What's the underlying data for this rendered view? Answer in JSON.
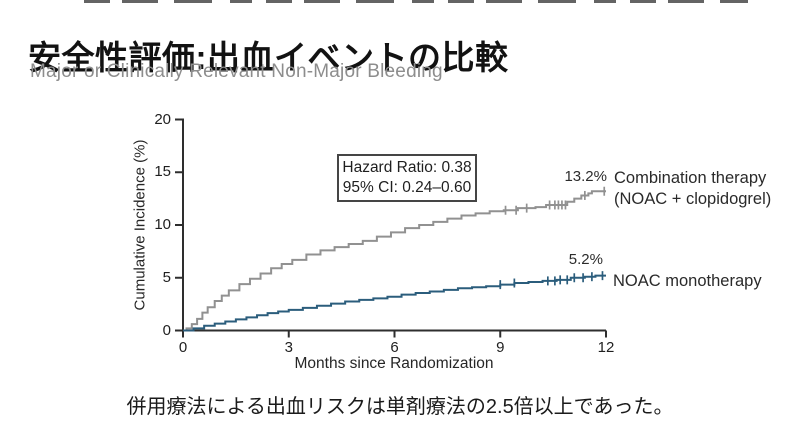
{
  "page": {
    "title": "安全性評価:出血イベントの比較",
    "subtitle": "Major or Clinically Relevant Non-Major Bleeding",
    "conclusion": "併用療法による出血リスクは単剤療法の2.5倍以上であった。"
  },
  "chart_data": {
    "type": "line",
    "subtype": "kaplan-meier-step",
    "title": "",
    "xlabel": "Months since Randomization",
    "ylabel": "Cumulative Incidence (%)",
    "xlim": [
      0,
      12
    ],
    "ylim": [
      0,
      20
    ],
    "xticks": [
      0,
      3,
      6,
      9,
      12
    ],
    "yticks": [
      0,
      5,
      10,
      15,
      20
    ],
    "grid": false,
    "legend_position": "right-of-curves",
    "axis_color": "#2e2e2e",
    "annotation": {
      "line1": "Hazard Ratio: 0.38",
      "line2": "95% CI: 0.24–0.60"
    },
    "series": [
      {
        "name": "Combination therapy (NOAC + clopidogrel)",
        "label_lines": [
          "Combination therapy",
          "(NOAC + clopidogrel)"
        ],
        "end_label": "13.2%",
        "end_value": 13.2,
        "color": "#919191",
        "points": [
          [
            0,
            0
          ],
          [
            0.1,
            0.2
          ],
          [
            0.25,
            0.6
          ],
          [
            0.4,
            1.1
          ],
          [
            0.55,
            1.7
          ],
          [
            0.7,
            2.2
          ],
          [
            0.9,
            2.8
          ],
          [
            1.1,
            3.3
          ],
          [
            1.3,
            3.8
          ],
          [
            1.6,
            4.4
          ],
          [
            1.9,
            4.9
          ],
          [
            2.2,
            5.4
          ],
          [
            2.5,
            5.9
          ],
          [
            2.8,
            6.3
          ],
          [
            3.1,
            6.7
          ],
          [
            3.5,
            7.2
          ],
          [
            3.9,
            7.6
          ],
          [
            4.3,
            7.9
          ],
          [
            4.7,
            8.2
          ],
          [
            5.1,
            8.5
          ],
          [
            5.5,
            8.9
          ],
          [
            5.9,
            9.3
          ],
          [
            6.3,
            9.7
          ],
          [
            6.7,
            10.0
          ],
          [
            7.1,
            10.3
          ],
          [
            7.5,
            10.6
          ],
          [
            7.9,
            10.9
          ],
          [
            8.3,
            11.1
          ],
          [
            8.7,
            11.3
          ],
          [
            9.1,
            11.4
          ],
          [
            9.5,
            11.6
          ],
          [
            10.0,
            11.7
          ],
          [
            10.3,
            11.9
          ],
          [
            10.9,
            12.2
          ],
          [
            11.1,
            12.5
          ],
          [
            11.3,
            12.8
          ],
          [
            11.5,
            13.0
          ],
          [
            11.6,
            13.2
          ],
          [
            12,
            13.2
          ]
        ],
        "censor_months": [
          9.15,
          9.45,
          9.75,
          10.4,
          10.55,
          10.65,
          10.75,
          10.85,
          11.4,
          11.95
        ]
      },
      {
        "name": "NOAC monotherapy",
        "label_lines": [
          "NOAC monotherapy"
        ],
        "end_label": "5.2%",
        "end_value": 5.2,
        "color": "#2b5d7c",
        "points": [
          [
            0,
            0
          ],
          [
            0.3,
            0.2
          ],
          [
            0.6,
            0.45
          ],
          [
            0.9,
            0.65
          ],
          [
            1.2,
            0.85
          ],
          [
            1.5,
            1.05
          ],
          [
            1.8,
            1.25
          ],
          [
            2.1,
            1.45
          ],
          [
            2.4,
            1.65
          ],
          [
            2.7,
            1.8
          ],
          [
            3.0,
            1.95
          ],
          [
            3.4,
            2.15
          ],
          [
            3.8,
            2.35
          ],
          [
            4.2,
            2.55
          ],
          [
            4.6,
            2.75
          ],
          [
            5.0,
            2.9
          ],
          [
            5.4,
            3.05
          ],
          [
            5.8,
            3.2
          ],
          [
            6.2,
            3.4
          ],
          [
            6.6,
            3.55
          ],
          [
            7.0,
            3.7
          ],
          [
            7.4,
            3.85
          ],
          [
            7.8,
            4.0
          ],
          [
            8.2,
            4.1
          ],
          [
            8.6,
            4.2
          ],
          [
            9.0,
            4.35
          ],
          [
            9.4,
            4.5
          ],
          [
            9.8,
            4.6
          ],
          [
            10.2,
            4.7
          ],
          [
            10.6,
            4.8
          ],
          [
            11.0,
            5.0
          ],
          [
            11.4,
            5.1
          ],
          [
            11.7,
            5.2
          ],
          [
            12,
            5.2
          ]
        ],
        "censor_months": [
          9.0,
          9.4,
          10.35,
          10.55,
          10.7,
          10.9,
          11.1,
          11.35,
          11.6,
          11.9
        ]
      }
    ]
  }
}
